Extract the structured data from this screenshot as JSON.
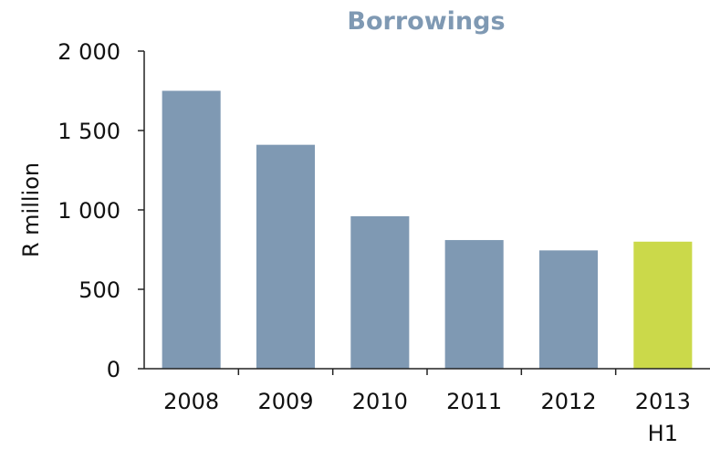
{
  "chart_data": {
    "type": "bar",
    "title": "Borrowings",
    "xlabel": "",
    "ylabel": "R million",
    "categories": [
      {
        "line1": "2008",
        "line2": ""
      },
      {
        "line1": "2009",
        "line2": ""
      },
      {
        "line1": "2010",
        "line2": ""
      },
      {
        "line1": "2011",
        "line2": ""
      },
      {
        "line1": "2012",
        "line2": ""
      },
      {
        "line1": "2013",
        "line2": "H1"
      }
    ],
    "values": [
      1750,
      1410,
      960,
      810,
      745,
      800
    ],
    "bar_colors": [
      "#7f99b3",
      "#7f99b3",
      "#7f99b3",
      "#7f99b3",
      "#7f99b3",
      "#cbd94a"
    ],
    "ylim": [
      0,
      2000
    ],
    "yticks": [
      {
        "value": 0,
        "label": "0"
      },
      {
        "value": 500,
        "label": "500"
      },
      {
        "value": 1000,
        "label": "1 000"
      },
      {
        "value": 1500,
        "label": "1 500"
      },
      {
        "value": 2000,
        "label": "2 000"
      }
    ],
    "grid": false,
    "legend": "none"
  }
}
